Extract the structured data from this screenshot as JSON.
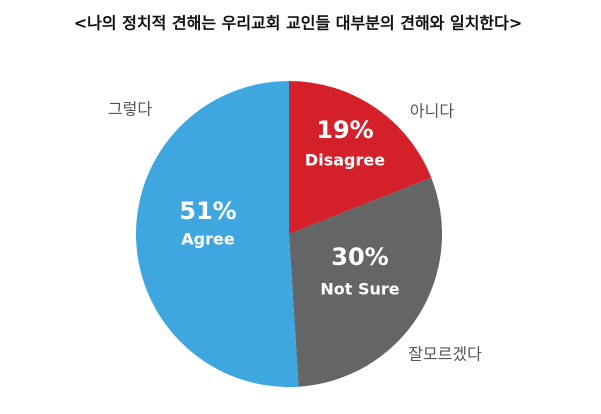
{
  "chart_data": {
    "type": "pie",
    "title": "<나의 정치적 견해는 우리교회 교인들 대부분의 견해와 일치한다>",
    "categories": [
      "Disagree",
      "Not Sure",
      "Agree"
    ],
    "values": [
      19,
      30,
      51
    ],
    "value_labels": [
      "19%",
      "30%",
      "51%"
    ],
    "outer_labels": [
      "아니다",
      "잘모르겠다",
      "그렇다"
    ],
    "colors": [
      "#d42029",
      "#646567",
      "#3fa7df"
    ]
  }
}
